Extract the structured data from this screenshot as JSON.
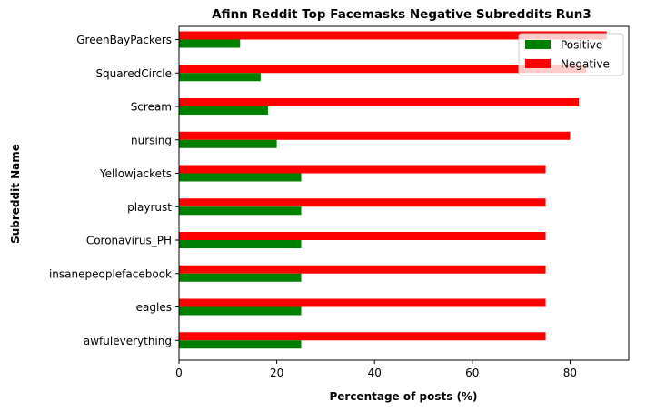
{
  "chart_data": {
    "type": "bar",
    "orientation": "horizontal",
    "title": "Afinn Reddit Top Facemasks Negative Subreddits Run3",
    "xlabel": "Percentage of posts (%)",
    "ylabel": "Subreddit Name",
    "xlim": [
      0,
      92
    ],
    "xticks": [
      0,
      20,
      40,
      60,
      80
    ],
    "categories": [
      "GreenBayPackers",
      "SquaredCircle",
      "Scream",
      "nursing",
      "Yellowjackets",
      "playrust",
      "Coronavirus_PH",
      "insanepeoplefacebook",
      "eagles",
      "awfuleverything"
    ],
    "series": [
      {
        "name": "Positive",
        "color": "#008000",
        "values": [
          12.5,
          16.7,
          18.2,
          20.0,
          25.0,
          25.0,
          25.0,
          25.0,
          25.0,
          25.0
        ]
      },
      {
        "name": "Negative",
        "color": "#ff0000",
        "values": [
          87.5,
          83.3,
          81.8,
          80.0,
          75.0,
          75.0,
          75.0,
          75.0,
          75.0,
          75.0
        ]
      }
    ],
    "legend_position": "top-right",
    "grid": false
  }
}
